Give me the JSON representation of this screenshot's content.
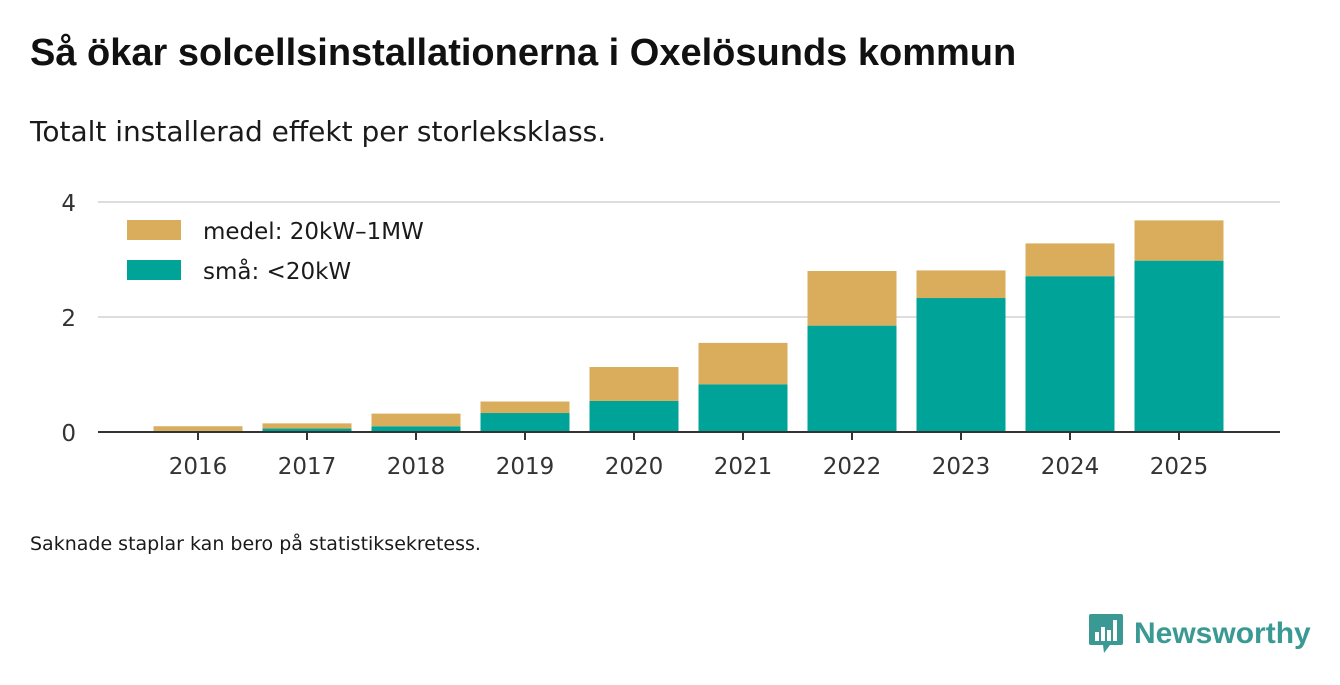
{
  "title": "Så ökar solcellsinstallationerna i Oxelösunds kommun",
  "subtitle": "Totalt installerad effekt per storleksklass.",
  "footnote": "Saknade staplar kan bero på statistiksekretess.",
  "brand": {
    "name": "Newsworthy",
    "icon": "newsworthy-logo-icon",
    "color": "#3a9a93"
  },
  "chart_data": {
    "type": "bar",
    "stacked": true,
    "title": "Så ökar solcellsinstallationerna i Oxelösunds kommun",
    "subtitle": "Totalt installerad effekt per storleksklass.",
    "xlabel": "",
    "ylabel": "",
    "ylim": [
      0,
      4
    ],
    "yticks": [
      0,
      2,
      4
    ],
    "grid": true,
    "legend_position": "top-left",
    "categories": [
      "2016",
      "2017",
      "2018",
      "2019",
      "2020",
      "2021",
      "2022",
      "2023",
      "2024",
      "2025"
    ],
    "series": [
      {
        "name": "små: <20kW",
        "color": "#00a398",
        "values": [
          0.02,
          0.06,
          0.1,
          0.33,
          0.54,
          0.83,
          1.85,
          2.33,
          2.71,
          2.98
        ]
      },
      {
        "name": "medel: 20kW–1MW",
        "color": "#d9ad5b",
        "values": [
          0.08,
          0.09,
          0.22,
          0.2,
          0.59,
          0.72,
          0.95,
          0.48,
          0.57,
          0.7
        ]
      }
    ],
    "legend_order": [
      "medel: 20kW–1MW",
      "små: <20kW"
    ]
  }
}
